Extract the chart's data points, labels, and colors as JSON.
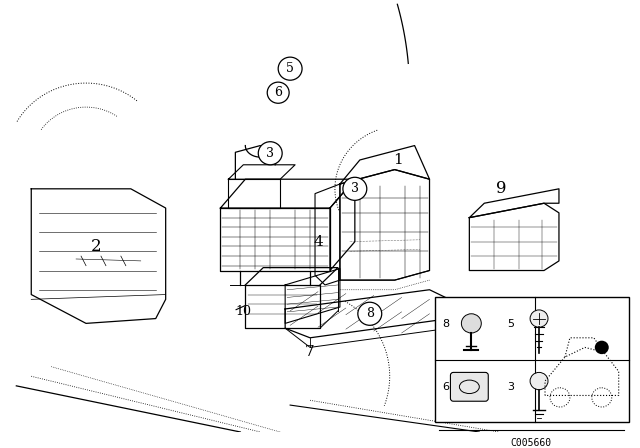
{
  "background_color": "#ffffff",
  "fig_width": 6.4,
  "fig_height": 4.48,
  "dpi": 100,
  "diagram_code": "C005660"
}
